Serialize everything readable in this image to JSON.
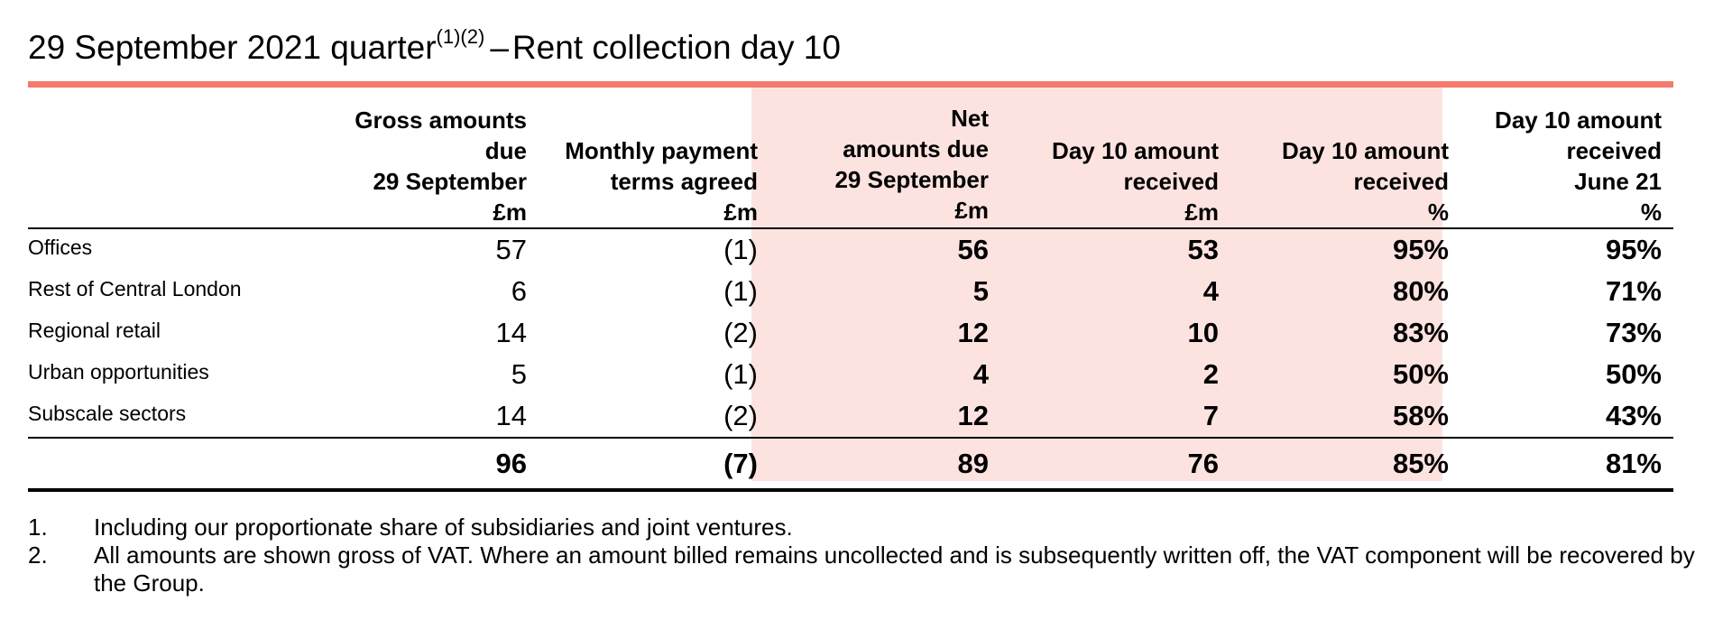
{
  "title": {
    "main": "29 September 2021 quarter",
    "superscript": "(1)(2)",
    "dash": "–",
    "rest": "Rent collection day 10"
  },
  "colors": {
    "accent_rule": "#f47a6d",
    "highlight_band": "#fde3e0"
  },
  "table": {
    "columns": [
      {
        "lines": [
          "Gross amounts",
          "due",
          "29 September",
          "£m"
        ]
      },
      {
        "lines": [
          "Monthly payment",
          "terms agreed",
          "£m"
        ]
      },
      {
        "lines": [
          "Net",
          "amounts due",
          "29 September",
          "£m"
        ]
      },
      {
        "lines": [
          "Day 10 amount",
          "received",
          "£m"
        ]
      },
      {
        "lines": [
          "Day 10 amount",
          "received",
          "%"
        ]
      },
      {
        "lines": [
          "Day 10 amount",
          "received",
          "June 21",
          "%"
        ]
      }
    ],
    "rows": [
      {
        "label": "Offices",
        "values": [
          "57",
          "(1)",
          "56",
          "53",
          "95%",
          "95%"
        ]
      },
      {
        "label": "Rest of Central London",
        "values": [
          "6",
          "(1)",
          "5",
          "4",
          "80%",
          "71%"
        ]
      },
      {
        "label": "Regional retail",
        "values": [
          "14",
          "(2)",
          "12",
          "10",
          "83%",
          "73%"
        ]
      },
      {
        "label": "Urban opportunities",
        "values": [
          "5",
          "(1)",
          "4",
          "2",
          "50%",
          "50%"
        ]
      },
      {
        "label": "Subscale sectors",
        "values": [
          "14",
          "(2)",
          "12",
          "7",
          "58%",
          "43%"
        ]
      }
    ],
    "total": {
      "values": [
        "96",
        "(7)",
        "89",
        "76",
        "85%",
        "81%"
      ]
    }
  },
  "notes": [
    {
      "num": "1.",
      "text": "Including our proportionate share of subsidiaries and joint ventures."
    },
    {
      "num": "2.",
      "text": "All amounts are shown gross of VAT. Where an amount billed remains uncollected and is subsequently written off, the VAT component will be recovered by the Group."
    }
  ]
}
